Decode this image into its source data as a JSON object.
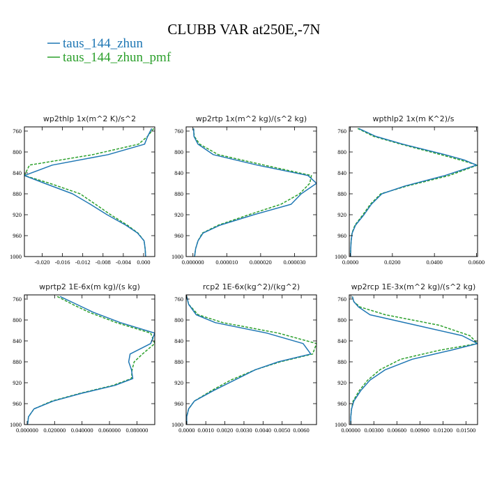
{
  "figure": {
    "title": "CLUBB VAR at250E,-7N",
    "legend": [
      {
        "label": "taus_144_zhun",
        "color": "#1f77b4"
      },
      {
        "label": "taus_144_zhun_pmf",
        "color": "#2ca02c"
      }
    ]
  },
  "chart_data": [
    {
      "type": "line",
      "title": "wp2thlp  1x(m^2 K)/s^2",
      "xlim": [
        -0.0235,
        0.0022
      ],
      "ylim": [
        1000,
        752
      ],
      "xticks": [
        -0.02,
        -0.016,
        -0.012,
        -0.008,
        -0.004,
        0.0
      ],
      "xticklabels": [
        "-0.020",
        "-0.016",
        "-0.012",
        "-0.008",
        "-0.004",
        "0.000"
      ],
      "yticks": [
        760,
        800,
        840,
        880,
        920,
        960,
        1000
      ],
      "y": [
        755,
        770,
        785,
        805,
        825,
        845,
        860,
        880,
        900,
        920,
        940,
        955,
        970,
        985,
        1000
      ],
      "series": [
        {
          "name": "taus_144_zhun",
          "color": "#1f77b4",
          "dash": "",
          "values": [
            0.0016,
            0.0008,
            0.0002,
            -0.007,
            -0.018,
            -0.0235,
            -0.0195,
            -0.014,
            -0.0105,
            -0.0072,
            -0.0035,
            -0.0012,
            0.0001,
            0.0003,
            0.0004
          ]
        },
        {
          "name": "taus_144_zhun_pmf",
          "color": "#2ca02c",
          "dash": "4,2",
          "values": [
            0.002,
            0.0008,
            -0.001,
            -0.01,
            -0.0225,
            -0.0235,
            -0.0185,
            -0.0125,
            -0.0095,
            -0.0065,
            -0.0032,
            -0.0011,
            0.0001,
            0.0003,
            0.0004
          ]
        }
      ]
    },
    {
      "type": "line",
      "title": "wp2rtp  1x(m^2 kg)/(s^2 kg)",
      "xlim": [
        -2e-06,
        3.65e-05
      ],
      "ylim": [
        1000,
        752
      ],
      "xticks": [
        0.0,
        1e-05,
        2e-05,
        3e-05
      ],
      "xticklabels": [
        "0.000000",
        "0.000010",
        "0.000020",
        "0.000030"
      ],
      "yticks": [
        760,
        800,
        840,
        880,
        920,
        960,
        1000
      ],
      "y": [
        755,
        770,
        785,
        805,
        825,
        845,
        860,
        880,
        900,
        920,
        940,
        955,
        970,
        985,
        1000
      ],
      "series": [
        {
          "name": "taus_144_zhun",
          "color": "#1f77b4",
          "dash": "",
          "values": [
            2e-07,
            3e-07,
            1.5e-06,
            6e-06,
            1.9e-05,
            3.4e-05,
            3.65e-05,
            3.2e-05,
            2.9e-05,
            1.8e-05,
            8e-06,
            3e-06,
            1.5e-06,
            8e-07,
            5e-07
          ]
        },
        {
          "name": "taus_144_zhun_pmf",
          "color": "#2ca02c",
          "dash": "4,2",
          "values": [
            2e-07,
            4e-07,
            2e-06,
            7.5e-06,
            2.1e-05,
            3.5e-05,
            3.45e-05,
            3.15e-05,
            2.6e-05,
            1.65e-05,
            7.5e-06,
            2.8e-06,
            1.5e-06,
            8e-07,
            5e-07
          ]
        }
      ]
    },
    {
      "type": "line",
      "title": "wpthlp2  1x(m K^2)/s",
      "xlim": [
        -0.0005,
        0.0605
      ],
      "ylim": [
        1000,
        752
      ],
      "xticks": [
        0.0,
        0.02,
        0.04,
        0.06
      ],
      "xticklabels": [
        "0.0000",
        "0.0200",
        "0.0400",
        "0.0600"
      ],
      "yticks": [
        760,
        800,
        840,
        880,
        920,
        960,
        1000
      ],
      "y": [
        755,
        770,
        785,
        805,
        815,
        825,
        845,
        865,
        880,
        900,
        920,
        940,
        955,
        970,
        985,
        1000
      ],
      "series": [
        {
          "name": "taus_144_zhun",
          "color": "#1f77b4",
          "dash": "",
          "values": [
            0.004,
            0.012,
            0.025,
            0.045,
            0.054,
            0.06,
            0.045,
            0.026,
            0.015,
            0.01,
            0.0065,
            0.0025,
            0.0009,
            0.0004,
            0.0002,
            0.0001
          ]
        },
        {
          "name": "taus_144_zhun_pmf",
          "color": "#2ca02c",
          "dash": "4,2",
          "values": [
            0.0035,
            0.011,
            0.024,
            0.043,
            0.052,
            0.0605,
            0.047,
            0.027,
            0.0145,
            0.0095,
            0.006,
            0.0022,
            0.0008,
            0.0004,
            0.0002,
            0.0001
          ]
        }
      ]
    },
    {
      "type": "line",
      "title": "wprtp2  1E-6x(m kg)/(s kg)",
      "xlim": [
        -0.002,
        0.093
      ],
      "ylim": [
        1000,
        752
      ],
      "xticks": [
        0.0,
        0.02,
        0.04,
        0.06,
        0.08
      ],
      "xticklabels": [
        "0.000000",
        "0.020000",
        "0.040000",
        "0.060000",
        "0.080000"
      ],
      "yticks": [
        760,
        800,
        840,
        880,
        920,
        960,
        1000
      ],
      "y": [
        755,
        770,
        785,
        805,
        825,
        845,
        865,
        880,
        895,
        912,
        925,
        940,
        955,
        970,
        985,
        1000
      ],
      "series": [
        {
          "name": "taus_144_zhun",
          "color": "#1f77b4",
          "dash": "",
          "values": [
            0.024,
            0.036,
            0.048,
            0.068,
            0.093,
            0.09,
            0.075,
            0.074,
            0.076,
            0.077,
            0.064,
            0.04,
            0.019,
            0.005,
            0.001,
            0.0003
          ]
        },
        {
          "name": "taus_144_zhun_pmf",
          "color": "#2ca02c",
          "dash": "4,2",
          "values": [
            0.022,
            0.033,
            0.045,
            0.065,
            0.09,
            0.093,
            0.084,
            0.078,
            0.0765,
            0.076,
            0.0625,
            0.039,
            0.018,
            0.005,
            0.001,
            0.0003
          ]
        }
      ]
    },
    {
      "type": "line",
      "title": "rcp2  1E-6x(kg^2)/(kg^2)",
      "xlim": [
        -3e-05,
        0.0068
      ],
      "ylim": [
        1000,
        752
      ],
      "xticks": [
        0.0,
        0.001,
        0.002,
        0.003,
        0.004,
        0.005,
        0.006
      ],
      "xticklabels": [
        "0.0000",
        "0.0010",
        "0.0020",
        "0.0030",
        "0.0040",
        "0.0050",
        "0.0060"
      ],
      "yticks": [
        760,
        800,
        840,
        880,
        920,
        960,
        1000
      ],
      "y": [
        755,
        770,
        790,
        805,
        825,
        845,
        865,
        880,
        895,
        915,
        935,
        955,
        970,
        985,
        1000
      ],
      "series": [
        {
          "name": "taus_144_zhun",
          "color": "#1f77b4",
          "dash": "",
          "values": [
            0.0,
            0.0001,
            0.0005,
            0.0015,
            0.0042,
            0.0061,
            0.0065,
            0.0048,
            0.0036,
            0.0025,
            0.0014,
            0.0004,
            0.0001,
            0.0,
            0.0
          ]
        },
        {
          "name": "taus_144_zhun_pmf",
          "color": "#2ca02c",
          "dash": "4,2",
          "values": [
            0.0,
            0.0001,
            0.0006,
            0.0019,
            0.0048,
            0.0068,
            0.0066,
            0.0049,
            0.0036,
            0.0023,
            0.0013,
            0.0004,
            0.0001,
            0.0,
            0.0
          ]
        }
      ]
    },
    {
      "type": "line",
      "title": "wp2rcp  1E-3x(m^2 kg)/(s^2 kg)",
      "xlim": [
        -0.0002,
        0.0165
      ],
      "ylim": [
        1000,
        752
      ],
      "xticks": [
        0.0,
        0.003,
        0.006,
        0.009,
        0.012,
        0.015
      ],
      "xticklabels": [
        "0.00000",
        "0.00300",
        "0.00600",
        "0.00900",
        "0.01200",
        "0.01500"
      ],
      "yticks": [
        760,
        800,
        840,
        880,
        920,
        960,
        1000
      ],
      "y": [
        755,
        765,
        775,
        790,
        810,
        830,
        845,
        858,
        875,
        895,
        915,
        935,
        955,
        970,
        985,
        1000
      ],
      "series": [
        {
          "name": "taus_144_zhun",
          "color": "#1f77b4",
          "dash": "",
          "values": [
            0.0002,
            0.0004,
            0.001,
            0.0025,
            0.0085,
            0.0145,
            0.0165,
            0.013,
            0.008,
            0.0045,
            0.0025,
            0.0013,
            0.0004,
            0.0001,
            0.0,
            0.0
          ]
        },
        {
          "name": "taus_144_zhun_pmf",
          "color": "#2ca02c",
          "dash": "4,2",
          "values": [
            0.0002,
            0.0004,
            0.0012,
            0.0045,
            0.0115,
            0.0155,
            0.0165,
            0.0115,
            0.0065,
            0.0038,
            0.0022,
            0.0011,
            0.0003,
            0.0001,
            0.0,
            0.0
          ]
        }
      ]
    }
  ]
}
